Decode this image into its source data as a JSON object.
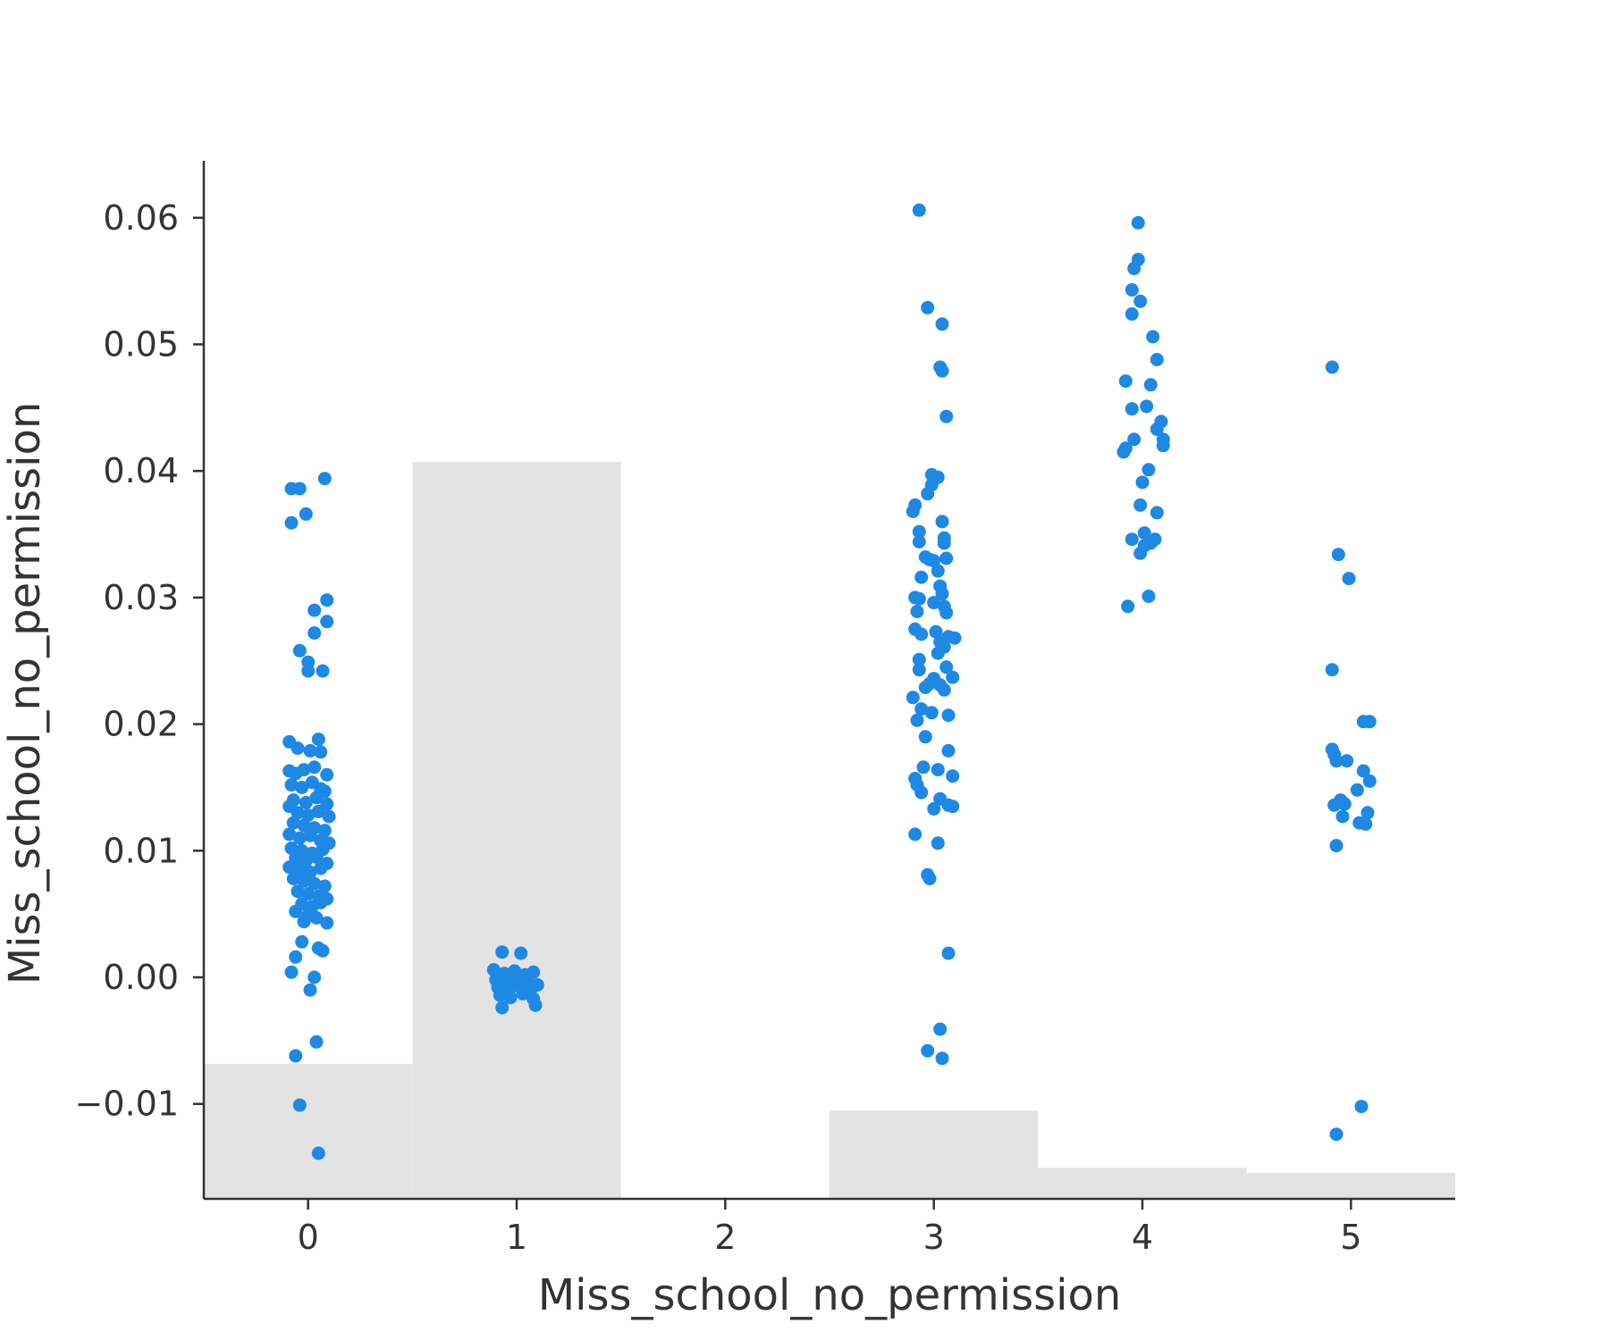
{
  "chart_data": {
    "type": "scatter",
    "title": "",
    "xlabel": "Miss_school_no_permission",
    "ylabel": "Miss_school_no_permission",
    "xlim": [
      -0.5,
      5.5
    ],
    "ylim": [
      -0.0175,
      0.0645
    ],
    "x_ticks": [
      "0",
      "1",
      "2",
      "3",
      "4",
      "5"
    ],
    "y_ticks": [
      "−0.01",
      "0.00",
      "0.01",
      "0.02",
      "0.03",
      "0.04",
      "0.05",
      "0.06"
    ],
    "y_tick_values": [
      -0.01,
      0.0,
      0.01,
      0.02,
      0.03,
      0.04,
      0.05,
      0.06
    ],
    "grid": false,
    "colors": {
      "points": "#1e88e5",
      "histogram": "#e3e3e3",
      "axis": "#333333"
    },
    "histogram": {
      "description_free": true,
      "bins": [
        {
          "x": 0,
          "relative_height": 0.13
        },
        {
          "x": 1,
          "relative_height": 0.71
        },
        {
          "x": 2,
          "relative_height": 0.0
        },
        {
          "x": 3,
          "relative_height": 0.085
        },
        {
          "x": 4,
          "relative_height": 0.03
        },
        {
          "x": 5,
          "relative_height": 0.025
        }
      ]
    },
    "points": [
      {
        "x": -0.08,
        "y": 0.0386
      },
      {
        "x": -0.04,
        "y": 0.0386
      },
      {
        "x": 0.08,
        "y": 0.0394
      },
      {
        "x": -0.01,
        "y": 0.0366
      },
      {
        "x": -0.08,
        "y": 0.0359
      },
      {
        "x": 0.09,
        "y": 0.0298
      },
      {
        "x": 0.03,
        "y": 0.029
      },
      {
        "x": 0.09,
        "y": 0.0281
      },
      {
        "x": 0.03,
        "y": 0.0272
      },
      {
        "x": -0.04,
        "y": 0.0258
      },
      {
        "x": 0.0,
        "y": 0.0249
      },
      {
        "x": 0.0,
        "y": 0.0242
      },
      {
        "x": 0.07,
        "y": 0.0242
      },
      {
        "x": -0.09,
        "y": 0.0186
      },
      {
        "x": 0.05,
        "y": 0.0188
      },
      {
        "x": -0.05,
        "y": 0.0181
      },
      {
        "x": 0.01,
        "y": 0.0179
      },
      {
        "x": 0.06,
        "y": 0.0178
      },
      {
        "x": -0.09,
        "y": 0.0163
      },
      {
        "x": -0.06,
        "y": 0.0161
      },
      {
        "x": -0.02,
        "y": 0.0164
      },
      {
        "x": 0.03,
        "y": 0.0166
      },
      {
        "x": 0.09,
        "y": 0.016
      },
      {
        "x": -0.08,
        "y": 0.0152
      },
      {
        "x": -0.03,
        "y": 0.015
      },
      {
        "x": 0.02,
        "y": 0.0154
      },
      {
        "x": 0.06,
        "y": 0.0149
      },
      {
        "x": 0.08,
        "y": 0.0147
      },
      {
        "x": -0.07,
        "y": 0.014
      },
      {
        "x": -0.01,
        "y": 0.0138
      },
      {
        "x": 0.04,
        "y": 0.0142
      },
      {
        "x": 0.09,
        "y": 0.0137
      },
      {
        "x": -0.09,
        "y": 0.0135
      },
      {
        "x": -0.05,
        "y": 0.013
      },
      {
        "x": 0.0,
        "y": 0.0128
      },
      {
        "x": 0.05,
        "y": 0.0131
      },
      {
        "x": 0.1,
        "y": 0.0127
      },
      {
        "x": -0.07,
        "y": 0.0122
      },
      {
        "x": -0.02,
        "y": 0.012
      },
      {
        "x": 0.03,
        "y": 0.0118
      },
      {
        "x": 0.08,
        "y": 0.0116
      },
      {
        "x": -0.09,
        "y": 0.0113
      },
      {
        "x": -0.04,
        "y": 0.011
      },
      {
        "x": 0.01,
        "y": 0.0112
      },
      {
        "x": 0.06,
        "y": 0.0108
      },
      {
        "x": 0.1,
        "y": 0.0106
      },
      {
        "x": -0.08,
        "y": 0.0102
      },
      {
        "x": -0.03,
        "y": 0.01
      },
      {
        "x": 0.02,
        "y": 0.0098
      },
      {
        "x": 0.07,
        "y": 0.0101
      },
      {
        "x": -0.06,
        "y": 0.0094
      },
      {
        "x": -0.01,
        "y": 0.0092
      },
      {
        "x": 0.04,
        "y": 0.0095
      },
      {
        "x": 0.09,
        "y": 0.009
      },
      {
        "x": -0.09,
        "y": 0.0087
      },
      {
        "x": -0.04,
        "y": 0.0085
      },
      {
        "x": 0.01,
        "y": 0.0083
      },
      {
        "x": 0.06,
        "y": 0.0086
      },
      {
        "x": -0.07,
        "y": 0.0078
      },
      {
        "x": -0.02,
        "y": 0.0076
      },
      {
        "x": 0.03,
        "y": 0.0074
      },
      {
        "x": 0.08,
        "y": 0.0072
      },
      {
        "x": -0.05,
        "y": 0.0068
      },
      {
        "x": 0.0,
        "y": 0.0066
      },
      {
        "x": 0.05,
        "y": 0.0064
      },
      {
        "x": 0.09,
        "y": 0.0062
      },
      {
        "x": -0.03,
        "y": 0.0058
      },
      {
        "x": 0.02,
        "y": 0.0056
      },
      {
        "x": 0.06,
        "y": 0.0059
      },
      {
        "x": -0.06,
        "y": 0.0052
      },
      {
        "x": 0.0,
        "y": 0.0049
      },
      {
        "x": 0.04,
        "y": 0.0047
      },
      {
        "x": -0.02,
        "y": 0.0044
      },
      {
        "x": 0.09,
        "y": 0.0043
      },
      {
        "x": -0.03,
        "y": 0.0028
      },
      {
        "x": 0.05,
        "y": 0.0023
      },
      {
        "x": 0.07,
        "y": 0.0021
      },
      {
        "x": -0.06,
        "y": 0.0016
      },
      {
        "x": -0.08,
        "y": 0.0004
      },
      {
        "x": 0.03,
        "y": 0.0
      },
      {
        "x": 0.01,
        "y": -0.001
      },
      {
        "x": 0.04,
        "y": -0.0051
      },
      {
        "x": -0.06,
        "y": -0.0062
      },
      {
        "x": -0.04,
        "y": -0.0101
      },
      {
        "x": 0.05,
        "y": -0.0139
      },
      {
        "x": 0.93,
        "y": 0.002
      },
      {
        "x": 1.02,
        "y": 0.0019
      },
      {
        "x": 0.89,
        "y": 0.0006
      },
      {
        "x": 0.94,
        "y": 0.0003
      },
      {
        "x": 0.99,
        "y": 0.0005
      },
      {
        "x": 1.04,
        "y": 0.0002
      },
      {
        "x": 1.08,
        "y": 0.0004
      },
      {
        "x": 0.9,
        "y": -0.0002
      },
      {
        "x": 0.95,
        "y": -0.0004
      },
      {
        "x": 1.0,
        "y": -0.0001
      },
      {
        "x": 1.05,
        "y": -0.0003
      },
      {
        "x": 1.1,
        "y": -0.0006
      },
      {
        "x": 0.91,
        "y": -0.0008
      },
      {
        "x": 0.96,
        "y": -0.001
      },
      {
        "x": 1.01,
        "y": -0.0007
      },
      {
        "x": 1.06,
        "y": -0.0011
      },
      {
        "x": 0.92,
        "y": -0.0014
      },
      {
        "x": 0.97,
        "y": -0.0016
      },
      {
        "x": 1.03,
        "y": -0.0013
      },
      {
        "x": 1.08,
        "y": -0.0017
      },
      {
        "x": 0.93,
        "y": -0.0024
      },
      {
        "x": 1.09,
        "y": -0.0022
      },
      {
        "x": 0.98,
        "y": 0.0001
      },
      {
        "x": 1.07,
        "y": -0.0009
      },
      {
        "x": 2.93,
        "y": 0.0606
      },
      {
        "x": 2.97,
        "y": 0.0529
      },
      {
        "x": 3.04,
        "y": 0.0516
      },
      {
        "x": 3.03,
        "y": 0.0482
      },
      {
        "x": 3.04,
        "y": 0.0479
      },
      {
        "x": 3.06,
        "y": 0.0443
      },
      {
        "x": 2.99,
        "y": 0.0397
      },
      {
        "x": 3.02,
        "y": 0.0395
      },
      {
        "x": 2.99,
        "y": 0.0389
      },
      {
        "x": 2.97,
        "y": 0.0382
      },
      {
        "x": 2.91,
        "y": 0.0373
      },
      {
        "x": 2.9,
        "y": 0.0368
      },
      {
        "x": 3.04,
        "y": 0.036
      },
      {
        "x": 2.93,
        "y": 0.0352
      },
      {
        "x": 3.05,
        "y": 0.0347
      },
      {
        "x": 2.93,
        "y": 0.0344
      },
      {
        "x": 3.05,
        "y": 0.0343
      },
      {
        "x": 2.96,
        "y": 0.0332
      },
      {
        "x": 2.98,
        "y": 0.033
      },
      {
        "x": 3.0,
        "y": 0.0329
      },
      {
        "x": 3.06,
        "y": 0.0331
      },
      {
        "x": 3.02,
        "y": 0.0321
      },
      {
        "x": 2.94,
        "y": 0.0316
      },
      {
        "x": 3.03,
        "y": 0.0309
      },
      {
        "x": 3.04,
        "y": 0.0303
      },
      {
        "x": 2.91,
        "y": 0.03
      },
      {
        "x": 2.93,
        "y": 0.0299
      },
      {
        "x": 3.0,
        "y": 0.0296
      },
      {
        "x": 3.05,
        "y": 0.0293
      },
      {
        "x": 3.06,
        "y": 0.0288
      },
      {
        "x": 2.92,
        "y": 0.0289
      },
      {
        "x": 2.91,
        "y": 0.0275
      },
      {
        "x": 2.94,
        "y": 0.0271
      },
      {
        "x": 3.01,
        "y": 0.0273
      },
      {
        "x": 3.07,
        "y": 0.0269
      },
      {
        "x": 3.1,
        "y": 0.0268
      },
      {
        "x": 3.03,
        "y": 0.0265
      },
      {
        "x": 3.05,
        "y": 0.0261
      },
      {
        "x": 3.02,
        "y": 0.0256
      },
      {
        "x": 2.93,
        "y": 0.0251
      },
      {
        "x": 3.06,
        "y": 0.0245
      },
      {
        "x": 2.93,
        "y": 0.0243
      },
      {
        "x": 3.09,
        "y": 0.0237
      },
      {
        "x": 3.0,
        "y": 0.0236
      },
      {
        "x": 2.98,
        "y": 0.0232
      },
      {
        "x": 3.03,
        "y": 0.0231
      },
      {
        "x": 2.96,
        "y": 0.0229
      },
      {
        "x": 3.05,
        "y": 0.0227
      },
      {
        "x": 2.9,
        "y": 0.0221
      },
      {
        "x": 2.94,
        "y": 0.0212
      },
      {
        "x": 2.99,
        "y": 0.0209
      },
      {
        "x": 3.07,
        "y": 0.0207
      },
      {
        "x": 2.92,
        "y": 0.0203
      },
      {
        "x": 2.96,
        "y": 0.019
      },
      {
        "x": 3.07,
        "y": 0.0179
      },
      {
        "x": 2.95,
        "y": 0.0166
      },
      {
        "x": 3.02,
        "y": 0.0164
      },
      {
        "x": 3.09,
        "y": 0.0159
      },
      {
        "x": 2.91,
        "y": 0.0157
      },
      {
        "x": 2.92,
        "y": 0.0152
      },
      {
        "x": 2.94,
        "y": 0.0146
      },
      {
        "x": 3.03,
        "y": 0.0141
      },
      {
        "x": 3.07,
        "y": 0.0136
      },
      {
        "x": 3.09,
        "y": 0.0135
      },
      {
        "x": 3.0,
        "y": 0.0133
      },
      {
        "x": 2.91,
        "y": 0.0113
      },
      {
        "x": 3.02,
        "y": 0.0106
      },
      {
        "x": 2.97,
        "y": 0.0081
      },
      {
        "x": 2.98,
        "y": 0.0078
      },
      {
        "x": 3.07,
        "y": 0.0019
      },
      {
        "x": 3.03,
        "y": -0.0041
      },
      {
        "x": 2.97,
        "y": -0.0058
      },
      {
        "x": 3.04,
        "y": -0.0064
      },
      {
        "x": 3.98,
        "y": 0.0596
      },
      {
        "x": 3.98,
        "y": 0.0567
      },
      {
        "x": 3.96,
        "y": 0.056
      },
      {
        "x": 3.95,
        "y": 0.0543
      },
      {
        "x": 3.99,
        "y": 0.0534
      },
      {
        "x": 3.95,
        "y": 0.0524
      },
      {
        "x": 4.05,
        "y": 0.0506
      },
      {
        "x": 4.07,
        "y": 0.0488
      },
      {
        "x": 3.92,
        "y": 0.0471
      },
      {
        "x": 4.04,
        "y": 0.0468
      },
      {
        "x": 4.02,
        "y": 0.0451
      },
      {
        "x": 3.95,
        "y": 0.0449
      },
      {
        "x": 4.09,
        "y": 0.0439
      },
      {
        "x": 4.07,
        "y": 0.0433
      },
      {
        "x": 3.96,
        "y": 0.0425
      },
      {
        "x": 4.1,
        "y": 0.0425
      },
      {
        "x": 4.1,
        "y": 0.042
      },
      {
        "x": 3.92,
        "y": 0.0418
      },
      {
        "x": 3.91,
        "y": 0.0415
      },
      {
        "x": 4.03,
        "y": 0.0401
      },
      {
        "x": 4.0,
        "y": 0.0391
      },
      {
        "x": 3.99,
        "y": 0.0373
      },
      {
        "x": 4.07,
        "y": 0.0367
      },
      {
        "x": 4.01,
        "y": 0.0351
      },
      {
        "x": 3.95,
        "y": 0.0346
      },
      {
        "x": 4.06,
        "y": 0.0346
      },
      {
        "x": 4.04,
        "y": 0.0343
      },
      {
        "x": 4.01,
        "y": 0.0341
      },
      {
        "x": 3.99,
        "y": 0.0335
      },
      {
        "x": 4.03,
        "y": 0.0301
      },
      {
        "x": 3.93,
        "y": 0.0293
      },
      {
        "x": 4.91,
        "y": 0.0482
      },
      {
        "x": 4.94,
        "y": 0.0334
      },
      {
        "x": 4.99,
        "y": 0.0315
      },
      {
        "x": 4.91,
        "y": 0.0243
      },
      {
        "x": 5.06,
        "y": 0.0202
      },
      {
        "x": 5.09,
        "y": 0.0202
      },
      {
        "x": 4.91,
        "y": 0.018
      },
      {
        "x": 4.92,
        "y": 0.0176
      },
      {
        "x": 4.93,
        "y": 0.0171
      },
      {
        "x": 4.98,
        "y": 0.0171
      },
      {
        "x": 5.06,
        "y": 0.0163
      },
      {
        "x": 5.09,
        "y": 0.0155
      },
      {
        "x": 5.03,
        "y": 0.0148
      },
      {
        "x": 4.95,
        "y": 0.014
      },
      {
        "x": 4.97,
        "y": 0.0137
      },
      {
        "x": 4.92,
        "y": 0.0136
      },
      {
        "x": 5.08,
        "y": 0.013
      },
      {
        "x": 4.96,
        "y": 0.0127
      },
      {
        "x": 5.04,
        "y": 0.0122
      },
      {
        "x": 5.07,
        "y": 0.0121
      },
      {
        "x": 4.93,
        "y": 0.0104
      },
      {
        "x": 5.05,
        "y": -0.0102
      },
      {
        "x": 4.93,
        "y": -0.0124
      }
    ]
  }
}
